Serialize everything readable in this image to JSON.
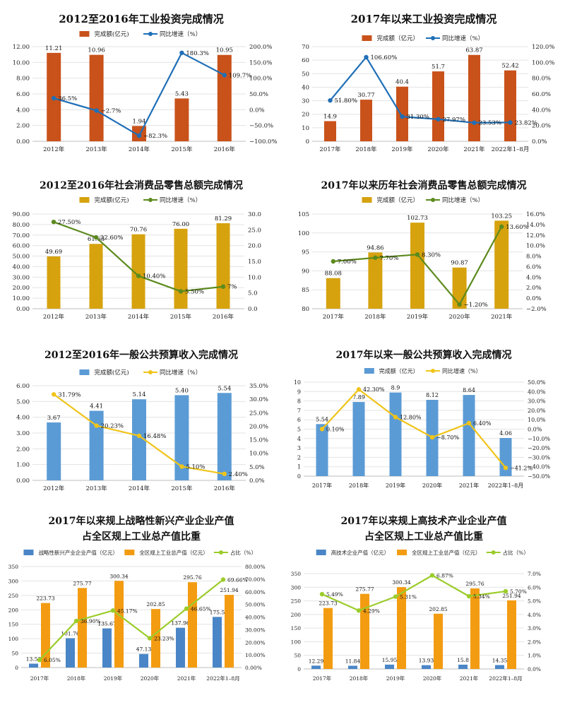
{
  "chart_data": [
    {
      "type": "bar-line",
      "title": [
        "2012至2016年工业投资完成情况"
      ],
      "categories": [
        "2012年",
        "2013年",
        "2014年",
        "2015年",
        "2016年"
      ],
      "series": [
        {
          "name": "完成额(亿元)",
          "type": "bar",
          "axis": "left",
          "values": [
            11.21,
            10.96,
            1.94,
            5.43,
            10.95
          ],
          "labels": [
            "11.21",
            "10.96",
            "1.94",
            "5.43",
            "10.95"
          ],
          "color": "#c9521b"
        },
        {
          "name": "同比增速（%）",
          "type": "line",
          "axis": "right",
          "values": [
            36.5,
            -2.7,
            -82.3,
            180.3,
            109.7
          ],
          "labels": [
            "36.5%",
            "−2.7%",
            "−82.3%",
            "180.3%",
            "109.7%"
          ],
          "color": "#1f6fb7"
        }
      ],
      "y_left": {
        "min": 0,
        "max": 12,
        "step": 2,
        "ticks": [
          "0.00",
          "2.00",
          "4.00",
          "6.00",
          "8.00",
          "10.00",
          "12.00"
        ]
      },
      "y_right": {
        "min": -100,
        "max": 200,
        "step": 50,
        "ticks": [
          "−100.0%",
          "−50.0%",
          "0.0%",
          "50.0%",
          "100.0%",
          "150.0%",
          "200.0%"
        ]
      },
      "legend_position": "top"
    },
    {
      "type": "bar-line",
      "title": [
        "2017年以来工业投资完成情况"
      ],
      "categories": [
        "2017年",
        "2018年",
        "2019年",
        "2020年",
        "2021年",
        "2022年1–8月"
      ],
      "series": [
        {
          "name": "完成额（亿元）",
          "type": "bar",
          "axis": "left",
          "values": [
            14.9,
            30.77,
            40.4,
            51.7,
            63.87,
            52.42
          ],
          "labels": [
            "14.9",
            "30.77",
            "40.4",
            "51.7",
            "63.87",
            "52.42"
          ],
          "color": "#c9521b"
        },
        {
          "name": "同比增速（%）",
          "type": "line",
          "axis": "right",
          "values": [
            51.8,
            106.6,
            31.3,
            27.97,
            23.53,
            23.82
          ],
          "labels": [
            "51.80%",
            "106.60%",
            "31.30%",
            "27.97%",
            "23.53%",
            "23.82%"
          ],
          "color": "#1f6fb7"
        }
      ],
      "y_left": {
        "min": 0,
        "max": 70,
        "step": 10,
        "ticks": [
          "0",
          "10",
          "20",
          "30",
          "40",
          "50",
          "60",
          "70"
        ]
      },
      "y_right": {
        "min": 0,
        "max": 120,
        "step": 20,
        "ticks": [
          "0.0%",
          "20.0%",
          "40.0%",
          "60.0%",
          "80.0%",
          "100.0%",
          "120.0%"
        ]
      },
      "legend_position": "top"
    },
    {
      "type": "bar-line",
      "title": [
        "2012至2016年社会消费品零售总额完成情况"
      ],
      "categories": [
        "2012年",
        "2013年",
        "2014年",
        "2015年",
        "2016年"
      ],
      "series": [
        {
          "name": "完成额(亿元)",
          "type": "bar",
          "axis": "left",
          "values": [
            49.69,
            61.63,
            70.76,
            76.0,
            81.29
          ],
          "labels": [
            "49.69",
            "61.63",
            "70.76",
            "76.00",
            "81.29"
          ],
          "color": "#d6a20e"
        },
        {
          "name": "同比增速（%）",
          "type": "line",
          "axis": "right",
          "values": [
            27.5,
            22.6,
            10.4,
            5.5,
            7
          ],
          "labels": [
            "27.50%",
            "22.60%",
            "10.40%",
            "5.50%",
            "7%"
          ],
          "color": "#5c8a1e"
        }
      ],
      "y_left": {
        "min": 0,
        "max": 90,
        "step": 10,
        "ticks": [
          "0.00",
          "10.00",
          "20.00",
          "30.00",
          "40.00",
          "50.00",
          "60.00",
          "70.00",
          "80.00",
          "90.00"
        ]
      },
      "y_right": {
        "min": 0,
        "max": 30,
        "step": 5,
        "ticks": [
          "0.0",
          "5.0",
          "10.0",
          "15.0",
          "20.0",
          "25.0",
          "30.0"
        ]
      },
      "legend_position": "top"
    },
    {
      "type": "bar-line",
      "title": [
        "2017年以来历年社会消费品零售总额完成情况"
      ],
      "categories": [
        "2017年",
        "2018年",
        "2019年",
        "2020年",
        "2021年"
      ],
      "series": [
        {
          "name": "完成额（亿元）",
          "type": "bar",
          "axis": "left",
          "values": [
            88.08,
            94.86,
            102.73,
            90.87,
            103.25
          ],
          "labels": [
            "88.08",
            "94.86",
            "102.73",
            "90.87",
            "103.25"
          ],
          "color": "#d6a20e"
        },
        {
          "name": "同比增速（%）",
          "type": "line",
          "axis": "right",
          "values": [
            7.0,
            7.7,
            8.3,
            -1.2,
            13.6
          ],
          "labels": [
            "7.00%",
            "7.70%",
            "8.30%",
            "−1.20%",
            "13.60%"
          ],
          "color": "#5c8a1e"
        }
      ],
      "y_left": {
        "min": 80,
        "max": 105,
        "step": 5,
        "ticks": [
          "80",
          "85",
          "90",
          "95",
          "100",
          "105"
        ]
      },
      "y_right": {
        "min": -2,
        "max": 16,
        "step": 2,
        "ticks": [
          "−2.0%",
          "0.0%",
          "2.0%",
          "4.0%",
          "6.0%",
          "8.0%",
          "10.0%",
          "12.0%",
          "14.0%",
          "16.0%"
        ]
      },
      "legend_position": "top"
    },
    {
      "type": "bar-line",
      "title": [
        "2012至2016年一般公共预算收入完成情况"
      ],
      "categories": [
        "2012年",
        "2013年",
        "2014年",
        "2015年",
        "2016年"
      ],
      "series": [
        {
          "name": "完成额(亿元)",
          "type": "bar",
          "axis": "left",
          "values": [
            3.67,
            4.41,
            5.14,
            5.4,
            5.54
          ],
          "labels": [
            "3.67",
            "4.41",
            "5.14",
            "5.40",
            "5.54"
          ],
          "color": "#5b9bd5"
        },
        {
          "name": "同比增速（%）",
          "type": "line",
          "axis": "right",
          "values": [
            31.79,
            20.23,
            16.48,
            5.1,
            2.4
          ],
          "labels": [
            "31.79%",
            "20.23%",
            "16.48%",
            "5.10%",
            "2.40%"
          ],
          "color": "#f0c419"
        }
      ],
      "y_left": {
        "min": 0,
        "max": 6,
        "step": 1,
        "ticks": [
          "0.00",
          "1.00",
          "2.00",
          "3.00",
          "4.00",
          "5.00",
          "6.00"
        ]
      },
      "y_right": {
        "min": 0,
        "max": 35,
        "step": 5,
        "ticks": [
          "0.0%",
          "5.0%",
          "10.0%",
          "15.0%",
          "20.0%",
          "25.0%",
          "30.0%",
          "35.0%"
        ]
      },
      "legend_position": "top"
    },
    {
      "type": "bar-line",
      "title": [
        "2017年以来一般公共预算收入完成情况"
      ],
      "categories": [
        "2017年",
        "2018年",
        "2019年",
        "2020年",
        "2021年",
        "2022年1–8月"
      ],
      "series": [
        {
          "name": "完成额（亿元）",
          "type": "bar",
          "axis": "left",
          "values": [
            5.54,
            7.89,
            8.9,
            8.12,
            8.64,
            4.06
          ],
          "labels": [
            "5.54",
            "7.89",
            "8.9",
            "8.12",
            "8.64",
            "4.06"
          ],
          "color": "#5b9bd5"
        },
        {
          "name": "同比增速（%）",
          "type": "line",
          "axis": "right",
          "values": [
            0.1,
            42.3,
            12.8,
            -8.7,
            6.4,
            -41.2
          ],
          "labels": [
            "0.10%",
            "42.30%",
            "12.80%",
            "−8.70%",
            "6.40%",
            "−41.2%"
          ],
          "color": "#f0c419"
        }
      ],
      "y_left": {
        "min": 0,
        "max": 10,
        "step": 1,
        "ticks": [
          "0",
          "1",
          "2",
          "3",
          "4",
          "5",
          "6",
          "7",
          "8",
          "9",
          "10"
        ]
      },
      "y_right": {
        "min": -50,
        "max": 50,
        "step": 10,
        "ticks": [
          "−50.0%",
          "−40.0%",
          "−30.0%",
          "−20.0%",
          "−10.0%",
          "0.0%",
          "10.0%",
          "20.0%",
          "30.0%",
          "40.0%",
          "50.0%"
        ]
      },
      "legend_position": "top"
    },
    {
      "type": "bar-line",
      "title": [
        "2017年以来规上战略性新兴产业企业产值",
        "占全区规上工业总产值比重"
      ],
      "categories": [
        "2017年",
        "2018年",
        "2019年",
        "2020年",
        "2021年",
        "2022年1–8月"
      ],
      "series": [
        {
          "name": "战略性新兴产业企业产值（亿元）",
          "type": "bar",
          "axis": "left",
          "values": [
            13.53,
            101.76,
            135.67,
            47.13,
            137.96,
            175.5
          ],
          "labels": [
            "13.53",
            "101.76",
            "135.67",
            "47.13",
            "137.96",
            "175.5"
          ],
          "color": "#4a86c7"
        },
        {
          "name": "全区规上工业总产值（亿元）",
          "type": "bar",
          "axis": "left",
          "values": [
            223.73,
            275.77,
            300.34,
            202.85,
            295.76,
            251.94
          ],
          "labels": [
            "223.73",
            "275.77",
            "300.34",
            "202.85",
            "295.76",
            "251.94"
          ],
          "color": "#f39c12"
        },
        {
          "name": "占比（%）",
          "type": "line",
          "axis": "right",
          "values": [
            6.05,
            36.9,
            45.17,
            23.23,
            46.65,
            69.66
          ],
          "labels": [
            "6.05%",
            "36.90%",
            "45.17%",
            "23.23%",
            "46.65%",
            "69.66%"
          ],
          "color": "#9ccc2b"
        }
      ],
      "y_left": {
        "min": 0,
        "max": 350,
        "step": 50,
        "ticks": [
          "0",
          "50",
          "100",
          "150",
          "200",
          "250",
          "300",
          "350"
        ]
      },
      "y_right": {
        "min": 0,
        "max": 80,
        "step": 10,
        "ticks": [
          "0.00%",
          "10.00%",
          "20.00%",
          "30.00%",
          "40.00%",
          "50.00%",
          "60.00%",
          "70.00%",
          "80.00%"
        ]
      },
      "legend_position": "top"
    },
    {
      "type": "bar-line",
      "title": [
        "2017年以来规上高技术产业企业产值",
        "占全区规上工业总产值比重"
      ],
      "categories": [
        "2017年",
        "2018年",
        "2019年",
        "2020年",
        "2021年",
        "2022年1–8月"
      ],
      "series": [
        {
          "name": "高技术企业产值（亿元）",
          "type": "bar",
          "axis": "left",
          "values": [
            12.29,
            11.84,
            15.95,
            13.93,
            15.8,
            14.35
          ],
          "labels": [
            "12.29",
            "11.84",
            "15.95",
            "13.93",
            "15.8",
            "14.35"
          ],
          "color": "#4a86c7"
        },
        {
          "name": "全区规上工业总产值（亿元）",
          "type": "bar",
          "axis": "left",
          "values": [
            223.73,
            275.77,
            300.34,
            202.85,
            295.76,
            251.94
          ],
          "labels": [
            "223.73",
            "275.77",
            "300.34",
            "202.85",
            "295.76",
            "251.94"
          ],
          "color": "#f39c12"
        },
        {
          "name": "占比（%）",
          "type": "line",
          "axis": "right",
          "values": [
            5.49,
            4.29,
            5.31,
            6.87,
            5.34,
            5.7
          ],
          "labels": [
            "5.49%",
            "4.29%",
            "5.31%",
            "6.87%",
            "5.34%",
            "5.70%"
          ],
          "color": "#9ccc2b"
        }
      ],
      "y_left": {
        "min": 0,
        "max": 350,
        "step": 50,
        "ticks": [
          "0",
          "50",
          "100",
          "150",
          "200",
          "250",
          "300",
          "350"
        ]
      },
      "y_right": {
        "min": 0,
        "max": 7,
        "step": 1,
        "ticks": [
          "0.0%",
          "1.0%",
          "2.0%",
          "3.0%",
          "4.0%",
          "5.0%",
          "6.0%",
          "7.0%"
        ]
      },
      "legend_position": "top"
    }
  ]
}
